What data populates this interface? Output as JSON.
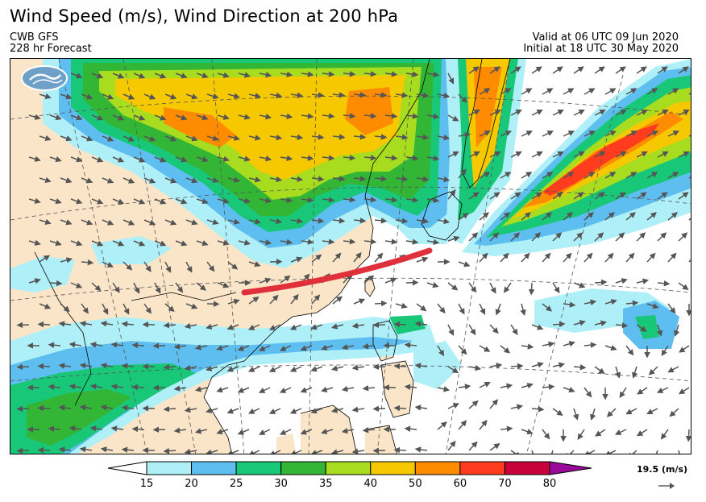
{
  "header": {
    "title": "Wind Speed (m/s), Wind Direction at 200 hPa",
    "model": "CWB GFS",
    "forecast": "228 hr Forecast",
    "valid": "Valid at 06 UTC 09 Jun 2020",
    "initial": "Initial at 18 UTC 30 May 2020"
  },
  "legend": {
    "levels": [
      "15",
      "20",
      "25",
      "30",
      "35",
      "40",
      "50",
      "60",
      "70",
      "80"
    ],
    "colors": [
      "#aff0f8",
      "#5fbef0",
      "#18c878",
      "#33b536",
      "#a8dc1e",
      "#f5c800",
      "#ff8c00",
      "#ff3c1e",
      "#c8003c",
      "#9a0a9a"
    ],
    "ref_vector_label": "19.5 (m/s)"
  },
  "colors": {
    "land": "#fbe5c8",
    "ocean": "#ffffff",
    "red_line": "#e0303c",
    "arrow": "#555555",
    "coast": "#000000",
    "grid": "#555555"
  },
  "icons": {
    "logo": "cwb-logo-icon",
    "ref_arrow": "arrow-right-icon"
  }
}
